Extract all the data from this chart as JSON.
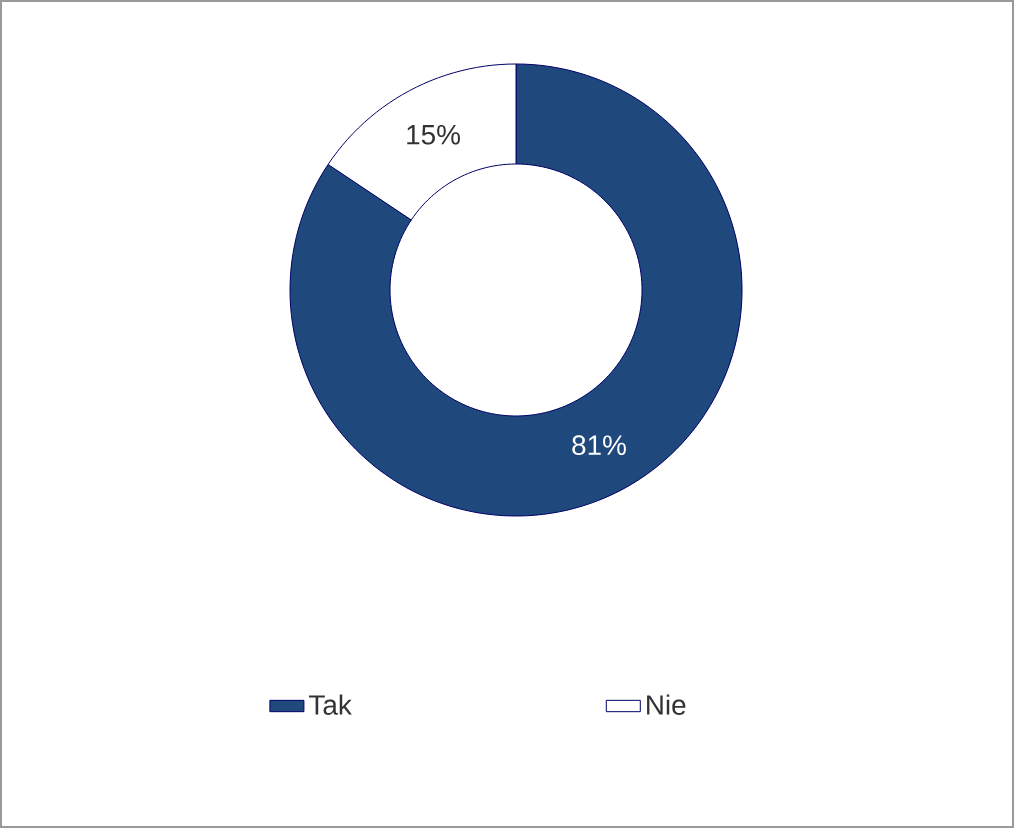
{
  "chart_data": {
    "type": "donut",
    "categories": [
      "Tak",
      "Nie"
    ],
    "values": [
      81,
      15
    ],
    "colors": [
      "#1f497d",
      "#ffffff"
    ],
    "value_labels": [
      "81%",
      "15%"
    ],
    "legend": "bottom"
  }
}
